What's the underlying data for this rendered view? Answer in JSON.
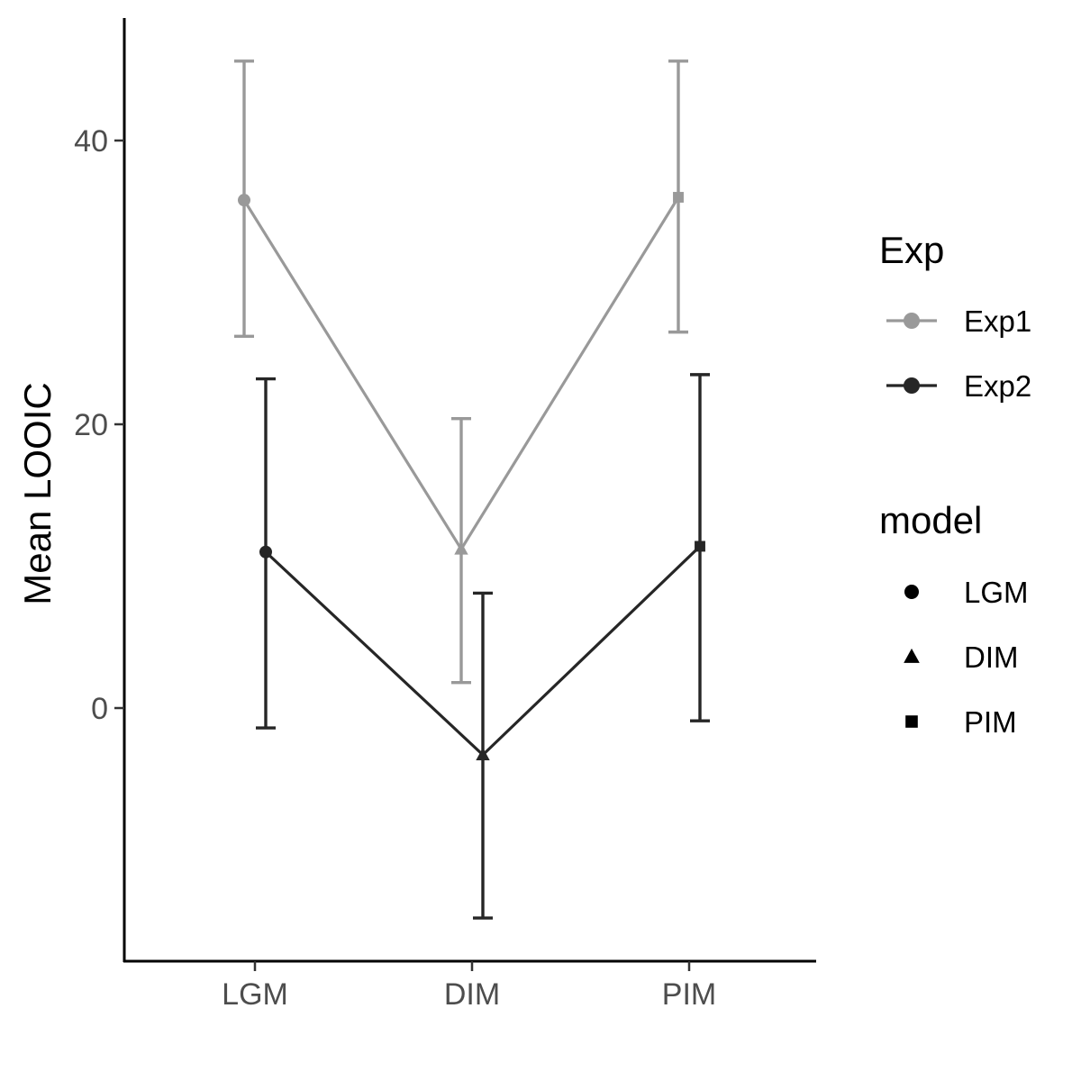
{
  "chart_data": {
    "type": "line",
    "title": "",
    "xlabel": "",
    "ylabel": "Mean LOOIC",
    "categories": [
      "LGM",
      "DIM",
      "PIM"
    ],
    "yticks": [
      0,
      20,
      40
    ],
    "ylim": [
      -17.9,
      48.5
    ],
    "grid": false,
    "error_bars": true,
    "series": [
      {
        "name": "Exp1",
        "color": "#999999",
        "values": [
          35.8,
          11.2,
          36.0
        ],
        "lower": [
          26.2,
          1.8,
          26.5
        ],
        "upper": [
          45.6,
          20.4,
          45.6
        ]
      },
      {
        "name": "Exp2",
        "color": "#262626",
        "values": [
          11.0,
          -3.3,
          11.4
        ],
        "lower": [
          -1.4,
          -14.8,
          -0.9
        ],
        "upper": [
          23.2,
          8.1,
          23.5
        ]
      }
    ],
    "legend": {
      "placement": "right",
      "color_title": "Exp",
      "shape_title": "model",
      "shape_entries": [
        {
          "label": "LGM",
          "shape": "circle"
        },
        {
          "label": "DIM",
          "shape": "triangle"
        },
        {
          "label": "PIM",
          "shape": "square"
        }
      ]
    }
  }
}
